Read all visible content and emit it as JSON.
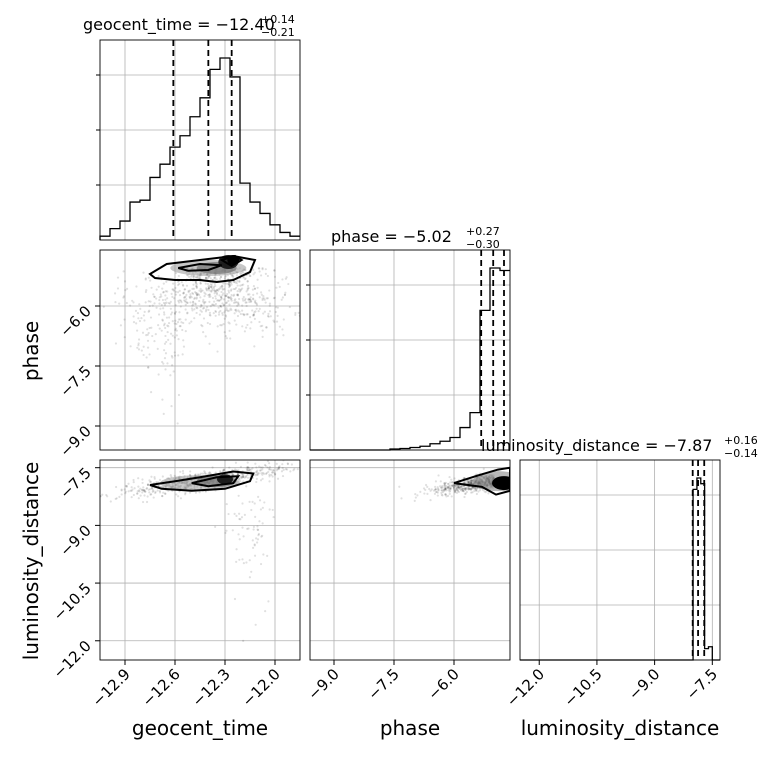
{
  "chart_data": {
    "type": "corner",
    "parameters": [
      {
        "name": "geocent_time",
        "title": {
          "base": "geocent_time = −12.40",
          "plus": "+0.14",
          "minus": "−0.21"
        },
        "median": -12.4,
        "q_low": -12.61,
        "q_high": -12.26,
        "range": [
          -13.05,
          -11.85
        ],
        "ticks": [
          -12.9,
          -12.6,
          -12.3,
          -12.0
        ],
        "tick_labels": [
          "−12.9",
          "−12.6",
          "−12.3",
          "−12.0"
        ],
        "hist_edges": [
          -13.05,
          -12.99,
          -12.93,
          -12.87,
          -12.81,
          -12.75,
          -12.69,
          -12.63,
          -12.57,
          -12.51,
          -12.45,
          -12.39,
          -12.33,
          -12.27,
          -12.21,
          -12.15,
          -12.09,
          -12.03,
          -11.97,
          -11.91,
          -11.85
        ],
        "hist_counts": [
          2,
          6,
          10,
          20,
          21,
          33,
          40,
          49,
          55,
          65,
          75,
          90,
          96,
          86,
          30,
          20,
          14,
          8,
          4,
          2
        ]
      },
      {
        "name": "phase",
        "title": {
          "base": "phase = −5.02",
          "plus": "+0.27",
          "minus": "−0.30"
        },
        "median": -5.02,
        "q_low": -5.32,
        "q_high": -4.75,
        "range": [
          -9.6,
          -4.6
        ],
        "ticks": [
          -9.0,
          -7.5,
          -6.0
        ],
        "tick_labels": [
          "−9.0",
          "−7.5",
          "−6.0"
        ],
        "hist_edges": [
          -9.6,
          -9.35,
          -9.1,
          -8.85,
          -8.6,
          -8.35,
          -8.1,
          -7.85,
          -7.6,
          -7.35,
          -7.1,
          -6.85,
          -6.6,
          -6.35,
          -6.1,
          -5.85,
          -5.6,
          -5.35,
          -5.1,
          -4.85,
          -4.6
        ],
        "hist_counts": [
          0,
          0,
          0,
          0,
          0,
          0,
          0,
          0,
          0.4,
          0.6,
          1,
          1.5,
          2.5,
          3.5,
          5,
          9,
          15,
          56,
          73,
          72
        ]
      },
      {
        "name": "luminosity_distance",
        "title": {
          "base": "luminosity_distance = −7.87",
          "plus": "+0.16",
          "minus": "−0.14"
        },
        "median": -7.87,
        "q_low": -8.01,
        "q_high": -7.71,
        "range": [
          -12.5,
          -7.3
        ],
        "ticks": [
          -12.0,
          -10.5,
          -9.0,
          -7.5
        ],
        "tick_labels": [
          "−12.0",
          "−10.5",
          "−9.0",
          "−7.5"
        ],
        "hist_edges": [
          -12.5,
          -12.24,
          -11.98,
          -11.72,
          -11.46,
          -11.2,
          -10.94,
          -10.68,
          -10.42,
          -10.16,
          -9.9,
          -9.64,
          -9.38,
          -9.12,
          -8.86,
          -8.6,
          -8.34,
          -8.08,
          -7.82,
          -7.56,
          -7.3
        ],
        "hist_counts": [
          0,
          0,
          0,
          0,
          0,
          0,
          0,
          0,
          0,
          0,
          0,
          0,
          0,
          0,
          0,
          0,
          0,
          0.1,
          0.1,
          0.1
        ]
      }
    ],
    "luminosity_hist_fine": {
      "edges": [
        -8.1,
        -8.0,
        -7.9,
        -7.8,
        -7.7,
        -7.6,
        -7.5,
        -7.4,
        -7.3
      ],
      "counts": [
        0,
        90,
        96,
        93,
        6,
        7,
        0,
        0
      ]
    },
    "axis_labels": [
      "geocent_time",
      "phase",
      "luminosity_distance"
    ],
    "vertical_tick_labels": {
      "phase": [
        "−6.0",
        "−7.5",
        "−9.0"
      ],
      "luminosity_distance": [
        "−7.5",
        "−9.0",
        "−10.5",
        "−12.0"
      ]
    },
    "grid": true,
    "quantile_line_style": "dashed"
  }
}
